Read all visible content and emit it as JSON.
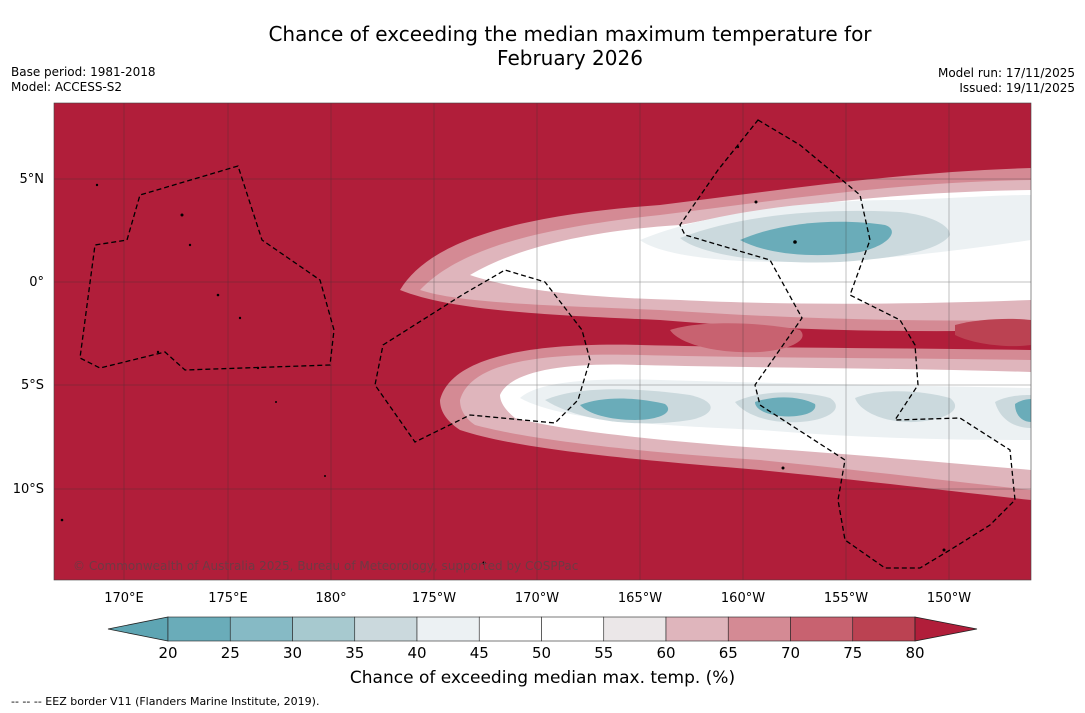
{
  "header": {
    "title_line1": "Chance of exceeding the median maximum temperature for",
    "title_line2": "February 2026",
    "base_period": "Base period: 1981-2018",
    "model": "Model: ACCESS-S2",
    "model_run": "Model run: 17/11/2025",
    "issued": "Issued: 19/11/2025"
  },
  "map": {
    "lat_labels": [
      "5°N",
      "0°",
      "5°S",
      "10°S"
    ],
    "lon_labels": [
      "170°E",
      "175°E",
      "180°",
      "175°W",
      "170°W",
      "165°W",
      "160°W",
      "155°W",
      "150°W"
    ],
    "copyright": "© Commonwealth of Australia 2025, Bureau of Meteorology, supported by COSPPac"
  },
  "legend": {
    "ticks": [
      "20",
      "25",
      "30",
      "35",
      "40",
      "45",
      "50",
      "55",
      "60",
      "65",
      "70",
      "75",
      "80"
    ],
    "colors": [
      "#5ea5b3",
      "#6aacb9",
      "#86bac5",
      "#a7c9cf",
      "#cbd9dd",
      "#ecf1f3",
      "#ffffff",
      "#ffffff",
      "#ebe7e8",
      "#dfb5bc",
      "#d48a94",
      "#c86270",
      "#bb4252",
      "#b11e3a"
    ],
    "title": "Chance of exceeding median max. temp. (%)"
  },
  "footer": {
    "eez_note": "--  --  -- EEZ border V11 (Flanders Marine Institute, 2019)."
  }
}
